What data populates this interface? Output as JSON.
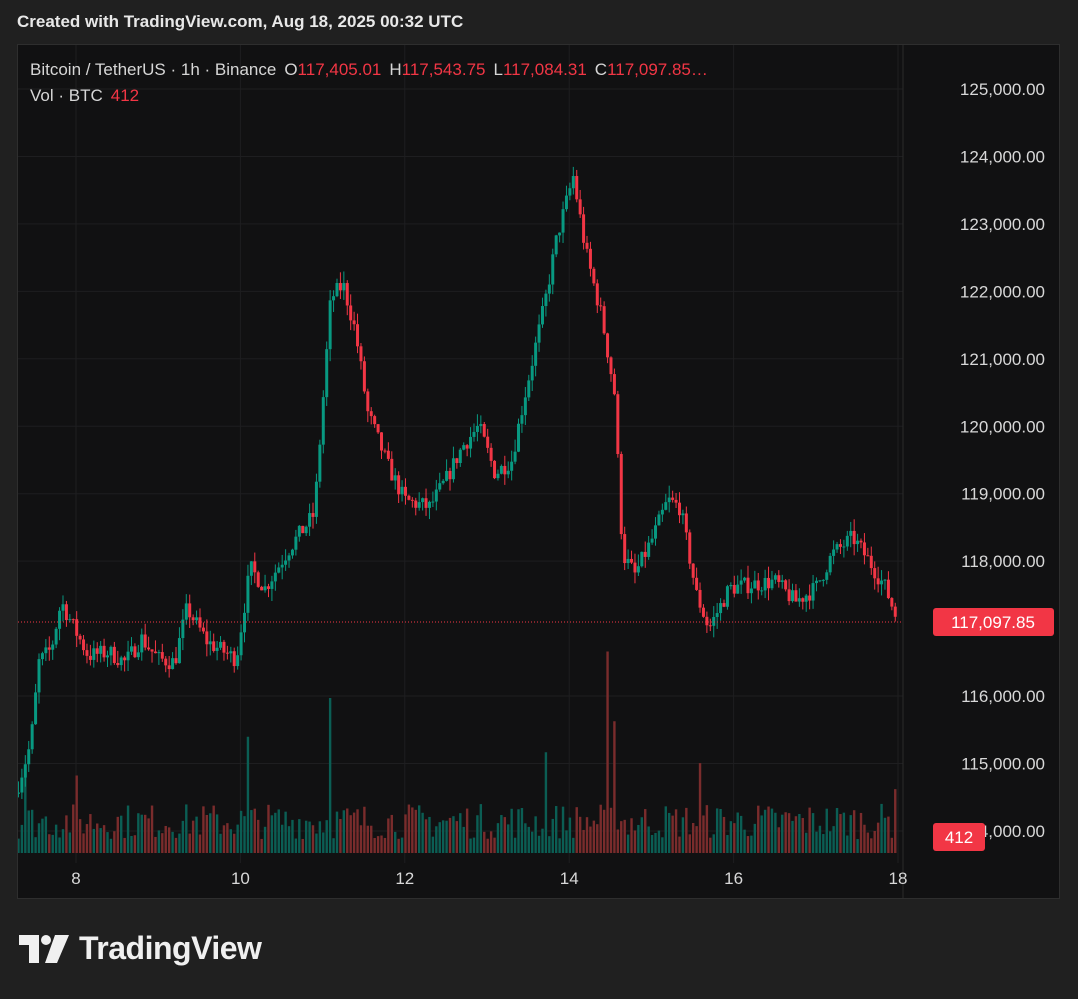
{
  "caption": "Created with TradingView.com, Aug 18, 2025 00:32 UTC",
  "legend": {
    "symbol": "Bitcoin / TetherUS · 1h · Binance",
    "o_label": "O",
    "open": "117,405.01",
    "h_label": "H",
    "high": "117,543.75",
    "l_label": "L",
    "low": "117,084.31",
    "c_label": "C",
    "close": "117,097.85…",
    "vol_label": "Vol · BTC",
    "vol_value": "412"
  },
  "price_tag": "117,097.85",
  "volume_tag": "412",
  "brand": "TradingView",
  "colors": {
    "up": "#089981",
    "down": "#f23645",
    "up_vol": "#0b5e54",
    "down_vol": "#7a2c2c",
    "grid": "#1e1e20",
    "axis_text": "#d8d8d8"
  },
  "chart_data": {
    "type": "candlestick",
    "interval": "1h",
    "x_ticks": [
      "8",
      "10",
      "12",
      "14",
      "16",
      "18"
    ],
    "x_tick_days": [
      8,
      10,
      12,
      14,
      16,
      18
    ],
    "x_range_days": [
      7.3,
      18.25
    ],
    "y_ticks": [
      "125,000.00",
      "124,000.00",
      "123,000.00",
      "122,000.00",
      "121,000.00",
      "120,000.00",
      "119,000.00",
      "118,000.00",
      "116,000.00",
      "115,000.00",
      "114,000.00"
    ],
    "y_tick_values": [
      125000,
      124000,
      123000,
      122000,
      121000,
      120000,
      119000,
      118000,
      116000,
      115000,
      114000
    ],
    "y_range": [
      113600,
      125600
    ],
    "last_price": 117097.85,
    "last_volume": 412,
    "start_day": 7.3,
    "hours_per_candle": 1,
    "close_anchors": [
      [
        7.3,
        114700
      ],
      [
        7.45,
        115300
      ],
      [
        7.55,
        116500
      ],
      [
        7.7,
        116700
      ],
      [
        7.82,
        117400
      ],
      [
        7.98,
        117000
      ],
      [
        8.15,
        116600
      ],
      [
        8.4,
        116650
      ],
      [
        8.6,
        116500
      ],
      [
        8.8,
        116850
      ],
      [
        9.0,
        116550
      ],
      [
        9.2,
        116500
      ],
      [
        9.35,
        117300
      ],
      [
        9.6,
        116800
      ],
      [
        9.95,
        116550
      ],
      [
        10.12,
        117900
      ],
      [
        10.3,
        117600
      ],
      [
        10.6,
        118200
      ],
      [
        10.9,
        118700
      ],
      [
        11.1,
        121900
      ],
      [
        11.25,
        122100
      ],
      [
        11.4,
        121400
      ],
      [
        11.55,
        120200
      ],
      [
        11.8,
        119400
      ],
      [
        12.0,
        118900
      ],
      [
        12.3,
        118800
      ],
      [
        12.5,
        119200
      ],
      [
        12.7,
        119700
      ],
      [
        12.9,
        120000
      ],
      [
        13.1,
        119300
      ],
      [
        13.3,
        119500
      ],
      [
        13.45,
        120400
      ],
      [
        13.7,
        121800
      ],
      [
        13.85,
        122800
      ],
      [
        14.05,
        123700
      ],
      [
        14.2,
        122600
      ],
      [
        14.4,
        121600
      ],
      [
        14.55,
        120500
      ],
      [
        14.65,
        118100
      ],
      [
        14.8,
        117800
      ],
      [
        15.0,
        118300
      ],
      [
        15.2,
        118900
      ],
      [
        15.35,
        118800
      ],
      [
        15.55,
        117500
      ],
      [
        15.7,
        117000
      ],
      [
        15.95,
        117600
      ],
      [
        16.2,
        117650
      ],
      [
        16.5,
        117700
      ],
      [
        16.75,
        117400
      ],
      [
        17.0,
        117600
      ],
      [
        17.2,
        118100
      ],
      [
        17.45,
        118350
      ],
      [
        17.65,
        118000
      ],
      [
        17.85,
        117600
      ],
      [
        18.0,
        117097.85
      ]
    ],
    "volume_range": [
      0,
      1100
    ],
    "volume_notes": "typical 100-400 BTC per hour; spikes near Aug 8 (~500), Aug 10 (~750), Aug 11 (~1000), Aug 13.7 (~650), Aug 14.5 (~1300), Aug 15.6 (~580)"
  }
}
